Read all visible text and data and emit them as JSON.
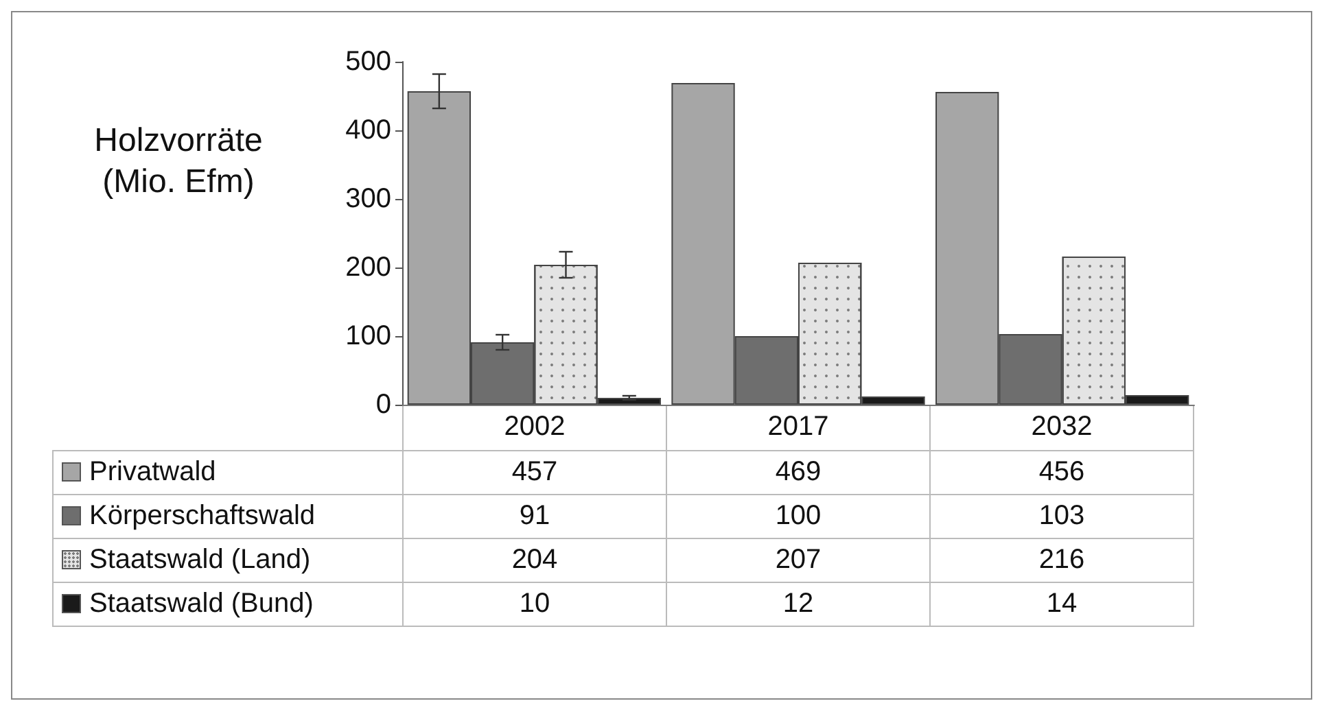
{
  "chart_data": {
    "type": "bar",
    "ylabel": "Holzvorräte\n(Mio. Efm)",
    "categories": [
      "2002",
      "2017",
      "2032"
    ],
    "series": [
      {
        "name": "Privatwald",
        "color": "#a6a6a6",
        "values": [
          457,
          469,
          456
        ],
        "errors": [
          25,
          null,
          null
        ]
      },
      {
        "name": "Körperschaftswald",
        "color": "#6e6e6e",
        "values": [
          91,
          100,
          103
        ],
        "errors": [
          11,
          null,
          null
        ]
      },
      {
        "name": "Staatswald (Land)",
        "color": "#e4e4e4",
        "values": [
          204,
          207,
          216
        ],
        "errors": [
          19,
          null,
          null
        ]
      },
      {
        "name": "Staatswald (Bund)",
        "color": "#1a1a1a",
        "values": [
          10,
          12,
          14
        ],
        "errors": [
          3,
          null,
          null
        ]
      }
    ],
    "ylim": [
      0,
      500
    ],
    "yticks": [
      0,
      100,
      200,
      300,
      400,
      500
    ],
    "grid": false,
    "legend": "bottom",
    "data_labels": true
  }
}
